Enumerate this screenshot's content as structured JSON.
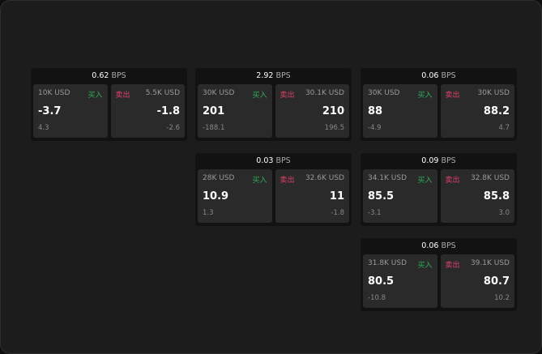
{
  "colors": {
    "buy": "#2fae5a",
    "sell": "#e0406a"
  },
  "labels": {
    "buy": "买入",
    "sell": "卖出",
    "unit": "BPS"
  },
  "widgets": [
    {
      "spread": "0.62",
      "bid": {
        "size": "10K USD",
        "price": "-3.7",
        "change": "4.3"
      },
      "ask": {
        "size": "5.5K USD",
        "price": "-1.8",
        "change": "-2.6"
      }
    },
    {
      "spread": "2.92",
      "bid": {
        "size": "30K USD",
        "price": "201",
        "change": "-188.1"
      },
      "ask": {
        "size": "30.1K USD",
        "price": "210",
        "change": "196.5"
      }
    },
    {
      "spread": "0.06",
      "bid": {
        "size": "30K USD",
        "price": "88",
        "change": "-4.9"
      },
      "ask": {
        "size": "30K USD",
        "price": "88.2",
        "change": "4.7"
      }
    },
    {
      "spread": "0.03",
      "bid": {
        "size": "28K USD",
        "price": "10.9",
        "change": "1.3"
      },
      "ask": {
        "size": "32.6K USD",
        "price": "11",
        "change": "-1.8"
      }
    },
    {
      "spread": "0.09",
      "bid": {
        "size": "34.1K USD",
        "price": "85.5",
        "change": "-3.1"
      },
      "ask": {
        "size": "32.8K USD",
        "price": "85.8",
        "change": "3.0"
      }
    },
    {
      "spread": "0.06",
      "bid": {
        "size": "31.8K USD",
        "price": "80.5",
        "change": "-10.8"
      },
      "ask": {
        "size": "39.1K USD",
        "price": "80.7",
        "change": "10.2"
      }
    }
  ]
}
